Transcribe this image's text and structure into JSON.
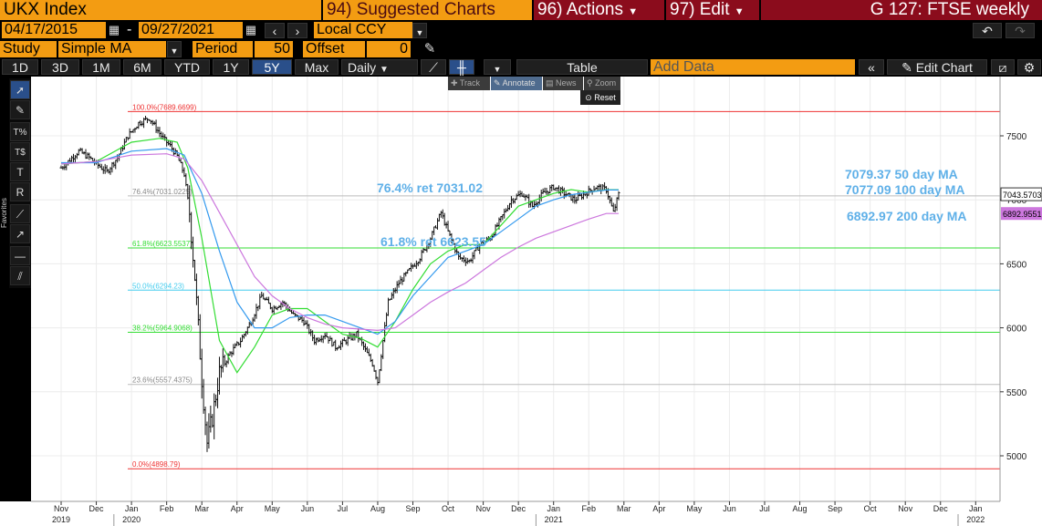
{
  "header": {
    "ticker": "UKX Index",
    "suggested": "94) Suggested Charts",
    "actions": "96) Actions",
    "edit": "97) Edit",
    "chart_id": "G 127: FTSE weekly"
  },
  "range": {
    "start": "04/17/2015",
    "dash": "-",
    "end": "09/27/2021",
    "currency": "Local CCY"
  },
  "study": {
    "label": "Study",
    "value": "Simple MA",
    "period_label": "Period",
    "period_value": "50",
    "offset_label": "Offset",
    "offset_value": "0"
  },
  "toolbar": {
    "periods": [
      "1D",
      "3D",
      "1M",
      "6M",
      "YTD",
      "1Y",
      "5Y",
      "Max"
    ],
    "selected": "5Y",
    "frequency": "Daily",
    "table": "Table",
    "add_data": "Add Data",
    "edit_chart": "Edit Chart"
  },
  "chart_tools": {
    "track": "Track",
    "annotate": "Annotate",
    "news": "News",
    "zoom": "Zoom",
    "reset": "Reset",
    "favorites": "Favorites"
  },
  "colors": {
    "orange": "#f39c12",
    "maroon": "#8b0c1c",
    "ma50": "#33dd33",
    "ma100": "#3399ee",
    "ma200": "#cc77dd",
    "annot": "#5fb0e8",
    "fib_line": "#ee3333"
  },
  "chart_data": {
    "type": "line",
    "y_ticks": [
      5000,
      5500,
      6000,
      6500,
      7000,
      7500
    ],
    "ylim": [
      4730,
      7780
    ],
    "x_months": [
      "Nov",
      "Dec",
      "Jan",
      "Feb",
      "Mar",
      "Apr",
      "May",
      "Jun",
      "Jul",
      "Aug",
      "Sep",
      "Oct",
      "Nov",
      "Dec",
      "Jan",
      "Feb",
      "Mar",
      "Apr",
      "May",
      "Jun",
      "Jul",
      "Aug",
      "Sep",
      "Oct",
      "Nov",
      "Dec",
      "Jan"
    ],
    "x_years": [
      "2019",
      "2020",
      "2021",
      "2022"
    ],
    "fib_levels": [
      {
        "label": "100.0%(7689.6699)",
        "value": 7689.67,
        "color": "#ee3333"
      },
      {
        "label": "76.4%(7031.0225)",
        "value": 7031.02,
        "color": "#bbbbbb"
      },
      {
        "label": "61.8%(6623.5537)",
        "value": 6623.55,
        "color": "#33dd33"
      },
      {
        "label": "50.0%(6294.23)",
        "value": 6294.23,
        "color": "#44ccee"
      },
      {
        "label": "38.2%(5964.9068)",
        "value": 5964.91,
        "color": "#33dd33"
      },
      {
        "label": "23.6%(5557.4375)",
        "value": 5557.44,
        "color": "#bbbbbb"
      },
      {
        "label": "0.0%(4898.79)",
        "value": 4898.79,
        "color": "#ee3333"
      }
    ],
    "annotations": [
      {
        "text": "76.4% ret 7031.02"
      },
      {
        "text": "61.8% ret 6623.55"
      },
      {
        "text": "7079.37 50 day MA",
        "color": "#5fb0e8"
      },
      {
        "text": "7077.09 100 day MA",
        "color": "#5fb0e8"
      },
      {
        "text": "6892.97 200 day MA",
        "color": "#5fb0e8"
      }
    ],
    "last_price": "7043.5703",
    "ma200_tag": "6892.9551",
    "series": [
      {
        "values": [
          [
            0,
            7250
          ],
          [
            0.2,
            7300
          ],
          [
            0.5,
            7380
          ],
          [
            0.8,
            7330
          ],
          [
            1.0,
            7280
          ],
          [
            1.3,
            7220
          ],
          [
            1.6,
            7330
          ],
          [
            1.9,
            7500
          ],
          [
            2.2,
            7600
          ],
          [
            2.5,
            7640
          ],
          [
            2.7,
            7560
          ],
          [
            2.9,
            7480
          ],
          [
            3.1,
            7420
          ],
          [
            3.3,
            7340
          ],
          [
            3.5,
            7200
          ],
          [
            3.65,
            6900
          ],
          [
            3.8,
            6400
          ],
          [
            4.0,
            5600
          ],
          [
            4.15,
            5100
          ],
          [
            4.3,
            5300
          ],
          [
            4.5,
            5650
          ],
          [
            4.8,
            5800
          ],
          [
            5.1,
            5900
          ],
          [
            5.4,
            6050
          ],
          [
            5.7,
            6250
          ],
          [
            6.0,
            6150
          ],
          [
            6.3,
            6200
          ],
          [
            6.6,
            6100
          ],
          [
            6.9,
            6050
          ],
          [
            7.2,
            5900
          ],
          [
            7.5,
            5950
          ],
          [
            7.8,
            5850
          ],
          [
            8.1,
            5900
          ],
          [
            8.4,
            5950
          ],
          [
            8.6,
            5850
          ],
          [
            8.85,
            5720
          ],
          [
            9.0,
            5580
          ],
          [
            9.15,
            5900
          ],
          [
            9.3,
            6200
          ],
          [
            9.6,
            6350
          ],
          [
            9.9,
            6450
          ],
          [
            10.2,
            6550
          ],
          [
            10.5,
            6700
          ],
          [
            10.8,
            6900
          ],
          [
            11.0,
            6750
          ],
          [
            11.3,
            6550
          ],
          [
            11.6,
            6520
          ],
          [
            11.9,
            6650
          ],
          [
            12.2,
            6700
          ],
          [
            12.5,
            6850
          ],
          [
            12.8,
            7000
          ],
          [
            13.1,
            7050
          ],
          [
            13.4,
            6950
          ],
          [
            13.7,
            7050
          ],
          [
            14.0,
            7100
          ],
          [
            14.3,
            7050
          ],
          [
            14.6,
            7000
          ],
          [
            14.9,
            7050
          ],
          [
            15.2,
            7100
          ],
          [
            15.5,
            7080
          ],
          [
            15.7,
            6900
          ],
          [
            15.85,
            7043
          ]
        ]
      },
      {
        "name": "50 day MA",
        "values": [
          [
            0,
            7280
          ],
          [
            1.0,
            7300
          ],
          [
            2.0,
            7450
          ],
          [
            2.8,
            7480
          ],
          [
            3.3,
            7450
          ],
          [
            3.6,
            7250
          ],
          [
            4.0,
            6700
          ],
          [
            4.5,
            5900
          ],
          [
            5.0,
            5650
          ],
          [
            5.5,
            5850
          ],
          [
            6.0,
            6100
          ],
          [
            6.5,
            6150
          ],
          [
            7.0,
            6150
          ],
          [
            7.5,
            6050
          ],
          [
            8.0,
            5950
          ],
          [
            8.5,
            5920
          ],
          [
            9.0,
            5850
          ],
          [
            9.5,
            6050
          ],
          [
            10.0,
            6300
          ],
          [
            10.5,
            6500
          ],
          [
            11.0,
            6600
          ],
          [
            11.5,
            6650
          ],
          [
            12.0,
            6650
          ],
          [
            12.5,
            6800
          ],
          [
            13.0,
            6950
          ],
          [
            13.5,
            7000
          ],
          [
            14.0,
            7050
          ],
          [
            14.5,
            7080
          ],
          [
            15.0,
            7060
          ],
          [
            15.5,
            7079
          ],
          [
            15.85,
            7079
          ]
        ]
      },
      {
        "name": "100 day MA",
        "values": [
          [
            0,
            7290
          ],
          [
            1.0,
            7290
          ],
          [
            2.0,
            7380
          ],
          [
            3.0,
            7400
          ],
          [
            3.5,
            7350
          ],
          [
            4.0,
            7050
          ],
          [
            4.5,
            6600
          ],
          [
            5.0,
            6200
          ],
          [
            5.5,
            6000
          ],
          [
            6.0,
            6000
          ],
          [
            6.5,
            6080
          ],
          [
            7.0,
            6100
          ],
          [
            7.5,
            6100
          ],
          [
            8.0,
            6050
          ],
          [
            8.5,
            6000
          ],
          [
            9.0,
            5950
          ],
          [
            9.5,
            6050
          ],
          [
            10.0,
            6250
          ],
          [
            10.5,
            6400
          ],
          [
            11.0,
            6550
          ],
          [
            11.5,
            6600
          ],
          [
            12.0,
            6650
          ],
          [
            12.5,
            6750
          ],
          [
            13.0,
            6850
          ],
          [
            13.5,
            6950
          ],
          [
            14.0,
            7000
          ],
          [
            14.5,
            7040
          ],
          [
            15.0,
            7060
          ],
          [
            15.5,
            7077
          ],
          [
            15.85,
            7077
          ]
        ]
      },
      {
        "name": "200 day MA",
        "values": [
          [
            0,
            7280
          ],
          [
            1.0,
            7300
          ],
          [
            2.0,
            7350
          ],
          [
            3.0,
            7360
          ],
          [
            3.5,
            7320
          ],
          [
            4.0,
            7150
          ],
          [
            4.5,
            6900
          ],
          [
            5.0,
            6650
          ],
          [
            5.5,
            6400
          ],
          [
            6.0,
            6250
          ],
          [
            6.5,
            6150
          ],
          [
            7.0,
            6080
          ],
          [
            7.5,
            6030
          ],
          [
            8.0,
            6000
          ],
          [
            8.5,
            5990
          ],
          [
            9.0,
            5980
          ],
          [
            9.5,
            6000
          ],
          [
            10.0,
            6100
          ],
          [
            10.5,
            6200
          ],
          [
            11.0,
            6280
          ],
          [
            11.5,
            6350
          ],
          [
            12.0,
            6450
          ],
          [
            12.5,
            6550
          ],
          [
            13.0,
            6630
          ],
          [
            13.5,
            6700
          ],
          [
            14.0,
            6750
          ],
          [
            14.5,
            6800
          ],
          [
            15.0,
            6850
          ],
          [
            15.5,
            6893
          ],
          [
            15.85,
            6893
          ]
        ]
      }
    ]
  }
}
